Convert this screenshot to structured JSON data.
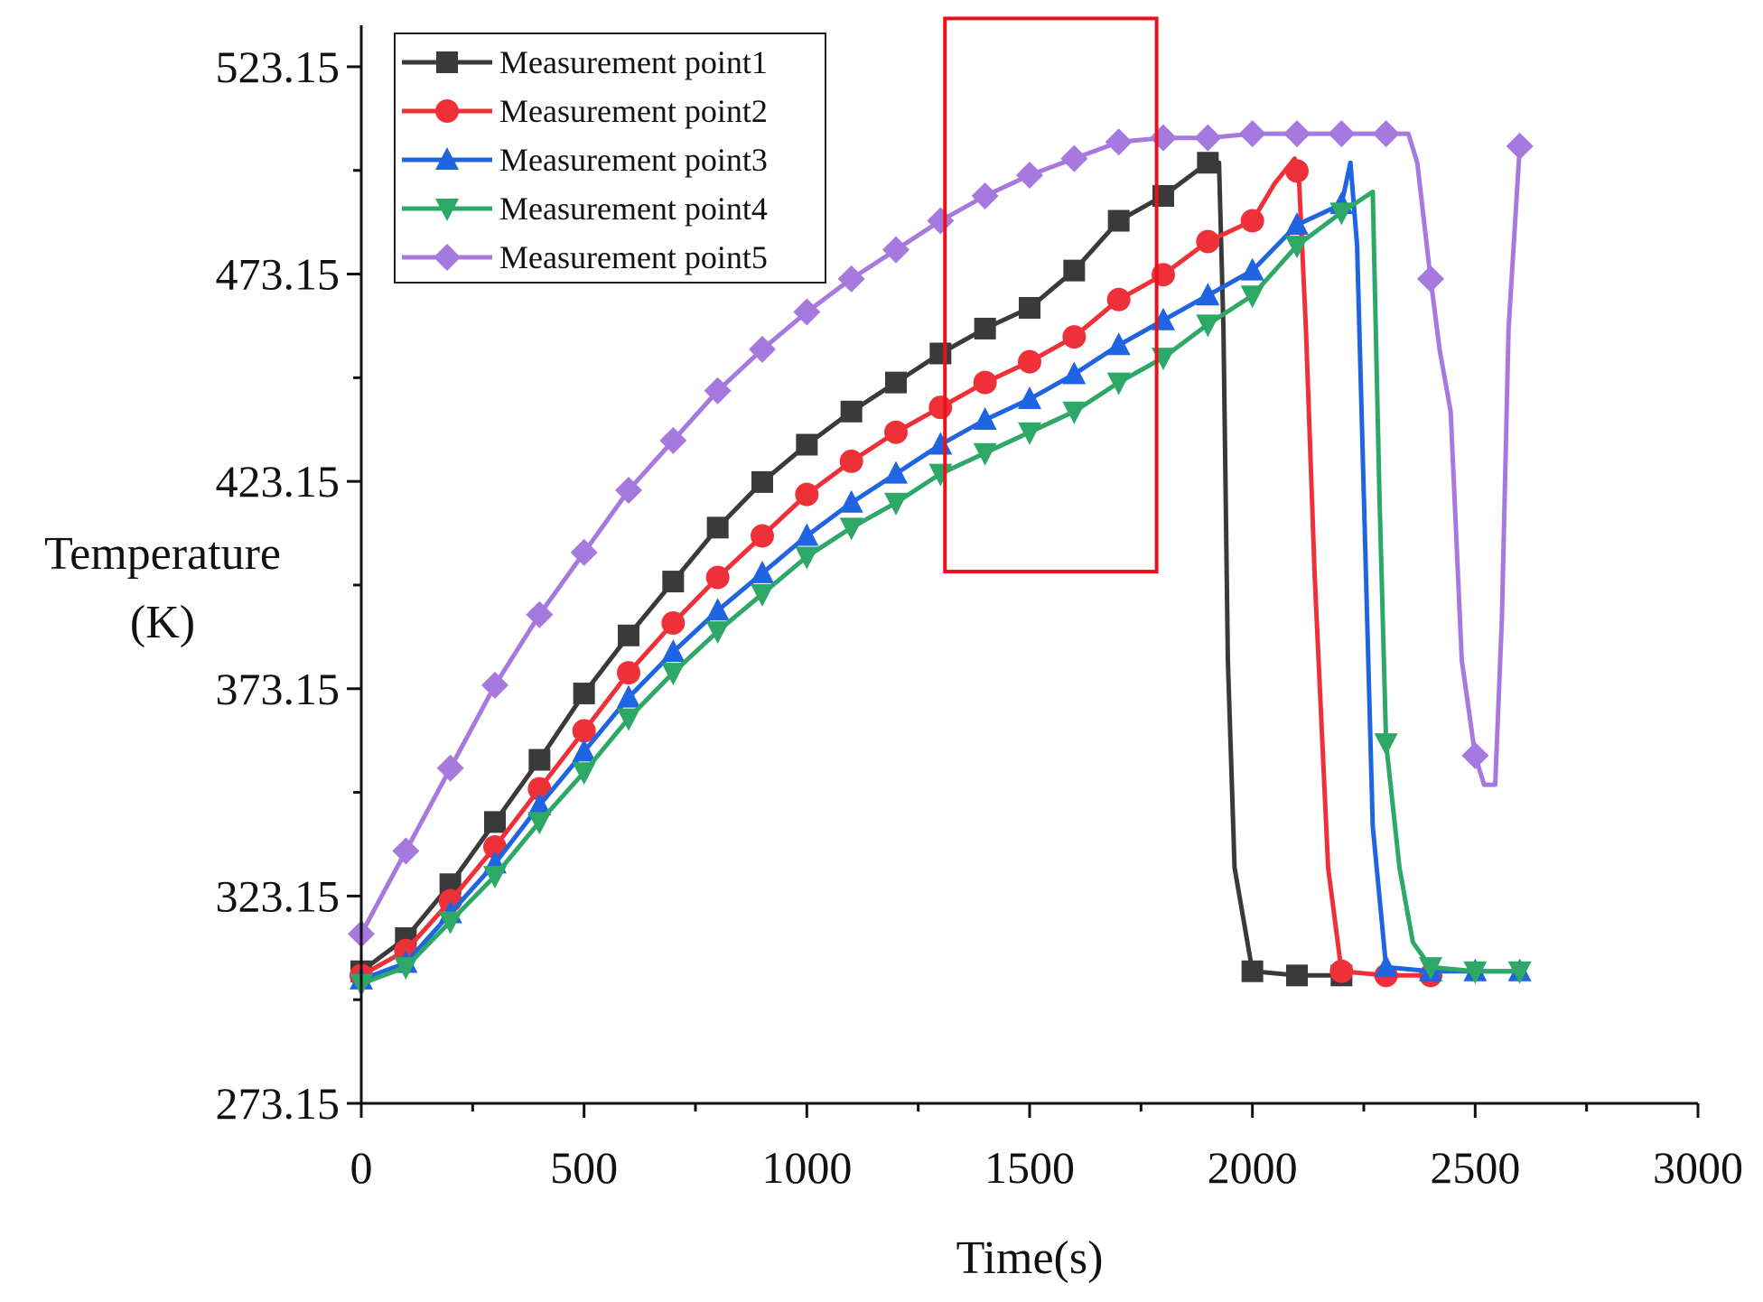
{
  "chart_data": {
    "type": "line",
    "title": "",
    "xlabel": "Time(s)",
    "ylabel_lines": [
      "Temperature",
      "(K)"
    ],
    "xlim": [
      0,
      3000
    ],
    "ylim": [
      273.15,
      533.15
    ],
    "xticks": [
      0,
      500,
      1000,
      1500,
      2000,
      2500,
      3000
    ],
    "xtick_labels": [
      "0",
      "500",
      "1000",
      "1500",
      "2000",
      "2500",
      "3000"
    ],
    "yticks": [
      273.15,
      323.15,
      373.15,
      423.15,
      473.15,
      523.15
    ],
    "ytick_labels": [
      "273.15",
      "323.15",
      "373.15",
      "423.15",
      "473.15",
      "523.15"
    ],
    "grid": false,
    "legend_position": "top-left",
    "highlight_box": {
      "x": [
        1310,
        1785
      ],
      "y": [
        401.4,
        534.8
      ],
      "color": "#e8121a"
    },
    "series": [
      {
        "name": "Measurement point1",
        "color": "#3a3a3a",
        "marker": "square",
        "x": [
          0,
          100,
          200,
          300,
          400,
          500,
          600,
          700,
          800,
          900,
          1000,
          1100,
          1200,
          1300,
          1400,
          1500,
          1600,
          1700,
          1800,
          1900,
          1925,
          1935,
          1945,
          1960,
          2000,
          2100,
          2200
        ],
        "y": [
          305,
          313,
          326,
          341,
          356,
          372,
          386,
          399,
          412,
          423,
          432,
          440,
          447,
          454,
          460,
          465,
          474,
          486,
          492,
          500,
          500,
          460,
          380,
          330,
          305,
          304,
          304
        ],
        "markers": [
          0,
          100,
          200,
          300,
          400,
          500,
          600,
          700,
          800,
          900,
          1000,
          1100,
          1200,
          1300,
          1400,
          1500,
          1600,
          1700,
          1800,
          1900,
          2000,
          2100,
          2200
        ]
      },
      {
        "name": "Measurement point2",
        "color": "#ee3138",
        "marker": "circle",
        "x": [
          0,
          100,
          200,
          300,
          400,
          500,
          600,
          700,
          800,
          900,
          1000,
          1100,
          1200,
          1300,
          1400,
          1500,
          1600,
          1700,
          1800,
          1900,
          2000,
          2050,
          2095,
          2105,
          2120,
          2140,
          2170,
          2200,
          2300,
          2400
        ],
        "y": [
          304,
          310,
          322,
          335,
          349,
          363,
          377,
          389,
          400,
          410,
          420,
          428,
          435,
          441,
          447,
          452,
          458,
          467,
          473,
          481,
          486,
          495,
          501,
          495,
          460,
          400,
          330,
          305,
          304,
          304
        ],
        "markers": [
          0,
          100,
          200,
          300,
          400,
          500,
          600,
          700,
          800,
          900,
          1000,
          1100,
          1200,
          1300,
          1400,
          1500,
          1600,
          1700,
          1800,
          1900,
          2000,
          2100,
          2200,
          2300,
          2400
        ]
      },
      {
        "name": "Measurement point3",
        "color": "#1f64e0",
        "marker": "triangle-up",
        "x": [
          0,
          100,
          200,
          300,
          400,
          500,
          600,
          700,
          800,
          900,
          1000,
          1100,
          1200,
          1300,
          1400,
          1500,
          1600,
          1700,
          1800,
          1900,
          2000,
          2100,
          2200,
          2220,
          2235,
          2250,
          2270,
          2300,
          2400,
          2500,
          2600
        ],
        "y": [
          303,
          307,
          319,
          331,
          345,
          358,
          371,
          382,
          392,
          401,
          410,
          418,
          425,
          432,
          438,
          443,
          449,
          456,
          462,
          468,
          474,
          485,
          490,
          500,
          480,
          420,
          340,
          306,
          305,
          305,
          305
        ],
        "markers": [
          0,
          100,
          200,
          300,
          400,
          500,
          600,
          700,
          800,
          900,
          1000,
          1100,
          1200,
          1300,
          1400,
          1500,
          1600,
          1700,
          1800,
          1900,
          2000,
          2100,
          2200,
          2300,
          2400,
          2500,
          2600
        ]
      },
      {
        "name": "Measurement point4",
        "color": "#2da866",
        "marker": "triangle-down",
        "x": [
          0,
          100,
          200,
          300,
          400,
          500,
          600,
          700,
          800,
          900,
          1000,
          1100,
          1200,
          1300,
          1400,
          1500,
          1600,
          1700,
          1800,
          1900,
          2000,
          2100,
          2200,
          2270,
          2285,
          2300,
          2330,
          2360,
          2400,
          2500,
          2600
        ],
        "y": [
          302,
          306,
          317,
          328,
          341,
          353,
          366,
          377,
          387,
          396,
          405,
          412,
          418,
          425,
          430,
          435,
          440,
          447,
          453,
          461,
          468,
          480,
          488,
          493,
          420,
          360,
          330,
          312,
          306,
          305,
          305
        ],
        "markers": [
          0,
          100,
          200,
          300,
          400,
          500,
          600,
          700,
          800,
          900,
          1000,
          1100,
          1200,
          1300,
          1400,
          1500,
          1600,
          1700,
          1800,
          1900,
          2000,
          2100,
          2200,
          2300,
          2400,
          2500,
          2600
        ]
      },
      {
        "name": "Measurement point5",
        "color": "#a679df",
        "marker": "diamond",
        "x": [
          0,
          100,
          200,
          300,
          400,
          500,
          600,
          700,
          800,
          900,
          1000,
          1100,
          1200,
          1300,
          1400,
          1500,
          1600,
          1700,
          1800,
          1900,
          2000,
          2100,
          2200,
          2300,
          2350,
          2370,
          2400,
          2420,
          2445,
          2470,
          2500,
          2520,
          2545,
          2560,
          2575,
          2600
        ],
        "y": [
          314,
          334,
          354,
          374,
          391,
          406,
          421,
          433,
          445,
          455,
          464,
          472,
          479,
          486,
          492,
          497,
          501,
          505,
          506,
          506,
          507,
          507,
          507,
          507,
          507,
          500,
          472,
          455,
          440,
          380,
          357,
          350,
          350,
          390,
          460,
          504
        ],
        "markers": [
          0,
          100,
          200,
          300,
          400,
          500,
          600,
          700,
          800,
          900,
          1000,
          1100,
          1200,
          1300,
          1400,
          1500,
          1600,
          1700,
          1800,
          1900,
          2000,
          2100,
          2200,
          2300,
          2400,
          2500,
          2600
        ]
      }
    ]
  }
}
